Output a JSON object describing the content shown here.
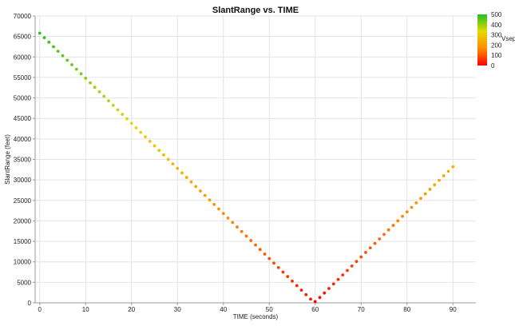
{
  "chart_data": {
    "type": "scatter",
    "title": "SlantRange vs. TIME",
    "xlabel": "TIME (seconds)",
    "ylabel": "SlantRange (feet)",
    "xlim": [
      -1,
      95
    ],
    "ylim": [
      0,
      70000
    ],
    "xticks": [
      0,
      10,
      20,
      30,
      40,
      50,
      60,
      70,
      80,
      90
    ],
    "yticks": [
      0,
      5000,
      10000,
      15000,
      20000,
      25000,
      30000,
      35000,
      40000,
      45000,
      50000,
      55000,
      60000,
      65000,
      70000
    ],
    "grid": true,
    "series": [
      {
        "x": [
          0,
          1,
          2,
          3,
          4,
          5,
          6,
          7,
          8,
          9,
          10,
          11,
          12,
          13,
          14,
          15,
          16,
          17,
          18,
          19,
          20,
          21,
          22,
          23,
          24,
          25,
          26,
          27,
          28,
          29,
          30,
          31,
          32,
          33,
          34,
          35,
          36,
          37,
          38,
          39,
          40,
          41,
          42,
          43,
          44,
          45,
          46,
          47,
          48,
          49,
          50,
          51,
          52,
          53,
          54,
          55,
          56,
          57,
          58,
          59,
          60,
          61,
          62,
          63,
          64,
          65,
          66,
          67,
          68,
          69,
          70,
          71,
          72,
          73,
          74,
          75,
          76,
          77,
          78,
          79,
          80,
          81,
          82,
          83,
          84,
          85,
          86,
          87,
          88,
          89,
          90
        ],
        "y": [
          65800,
          64700,
          63600,
          62500,
          61400,
          60300,
          59200,
          58100,
          57000,
          55900,
          54800,
          53700,
          52600,
          51500,
          50400,
          49300,
          48200,
          47100,
          46000,
          44900,
          43800,
          42700,
          41600,
          40500,
          39400,
          38300,
          37200,
          36100,
          35000,
          33900,
          32800,
          31700,
          30600,
          29500,
          28400,
          27300,
          26200,
          25100,
          24000,
          22900,
          21800,
          20700,
          19600,
          18500,
          17400,
          16300,
          15200,
          14100,
          13000,
          11900,
          10800,
          9700,
          8600,
          7500,
          6400,
          5300,
          4200,
          3100,
          2000,
          900,
          300,
          1300,
          2400,
          3500,
          4600,
          5700,
          6800,
          7900,
          9000,
          10100,
          11200,
          12300,
          13400,
          14500,
          15600,
          16700,
          17800,
          18900,
          20000,
          21100,
          22200,
          23300,
          24400,
          25500,
          26600,
          27700,
          28800,
          29900,
          31000,
          32100,
          33200
        ],
        "color_value": [
          493,
          485,
          477,
          469,
          461,
          453,
          445,
          437,
          429,
          421,
          413,
          405,
          397,
          389,
          381,
          373,
          365,
          357,
          349,
          341,
          333,
          325,
          317,
          309,
          301,
          293,
          285,
          277,
          269,
          261,
          253,
          245,
          237,
          229,
          221,
          213,
          205,
          197,
          189,
          181,
          173,
          165,
          157,
          149,
          141,
          133,
          125,
          117,
          109,
          101,
          93,
          85,
          77,
          69,
          61,
          53,
          45,
          37,
          29,
          21,
          5,
          15,
          23,
          31,
          39,
          47,
          55,
          63,
          71,
          79,
          87,
          95,
          103,
          111,
          119,
          127,
          135,
          143,
          151,
          159,
          167,
          175,
          183,
          191,
          199,
          207,
          215,
          223,
          231,
          239,
          247
        ]
      }
    ],
    "colorbar": {
      "label": "Vsep",
      "ticks": [
        500,
        400,
        300,
        200,
        100,
        0
      ],
      "range": [
        0,
        500
      ],
      "colors": [
        "#ff0000",
        "#ff8c00",
        "#e6d800",
        "#22c022"
      ]
    }
  }
}
